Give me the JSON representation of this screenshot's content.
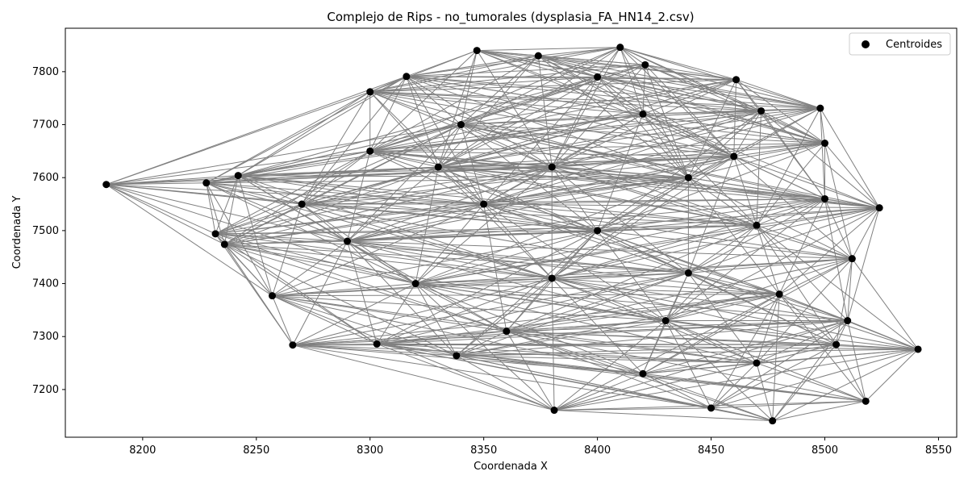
{
  "chart_data": {
    "type": "scatter",
    "title": "Complejo de Rips - no_tumorales (dysplasia_FA_HN14_2.csv)",
    "xlabel": "Coordenada X",
    "ylabel": "Coordenada Y",
    "xlim": [
      8166,
      8558
    ],
    "ylim": [
      7110,
      7882
    ],
    "xticks": [
      8200,
      8250,
      8300,
      8350,
      8400,
      8450,
      8500,
      8550
    ],
    "yticks": [
      7200,
      7300,
      7400,
      7500,
      7600,
      7700,
      7800
    ],
    "grid": false,
    "legend": {
      "location": "top-right",
      "entries": [
        "Centroides"
      ]
    },
    "colors": {
      "points": "#000000",
      "edges": "#808080",
      "axes": "#000000",
      "legend_border": "#cccccc"
    },
    "series": [
      {
        "name": "Centroides",
        "points": [
          [
            8184,
            7587
          ],
          [
            8266,
            7284
          ],
          [
            8257,
            7377
          ],
          [
            8347,
            7840
          ],
          [
            8374,
            7830
          ],
          [
            8410,
            7846
          ],
          [
            8421,
            7813
          ],
          [
            8461,
            7785
          ],
          [
            8498,
            7731
          ],
          [
            8300,
            7762
          ],
          [
            8316,
            7791
          ],
          [
            8472,
            7726
          ],
          [
            8500,
            7665
          ],
          [
            8524,
            7543
          ],
          [
            8541,
            7276
          ],
          [
            8518,
            7178
          ],
          [
            8477,
            7141
          ],
          [
            8450,
            7165
          ],
          [
            8381,
            7161
          ],
          [
            8228,
            7590
          ],
          [
            8242,
            7604
          ],
          [
            8232,
            7494
          ],
          [
            8236,
            7474
          ],
          [
            8303,
            7286
          ],
          [
            8338,
            7264
          ],
          [
            8300,
            7650
          ],
          [
            8340,
            7700
          ],
          [
            8380,
            7620
          ],
          [
            8420,
            7720
          ],
          [
            8460,
            7640
          ],
          [
            8500,
            7560
          ],
          [
            8512,
            7447
          ],
          [
            8510,
            7330
          ],
          [
            8505,
            7285
          ],
          [
            8470,
            7250
          ],
          [
            8420,
            7230
          ],
          [
            8360,
            7310
          ],
          [
            8320,
            7400
          ],
          [
            8290,
            7480
          ],
          [
            8350,
            7550
          ],
          [
            8400,
            7500
          ],
          [
            8440,
            7420
          ],
          [
            8480,
            7380
          ],
          [
            8430,
            7330
          ],
          [
            8380,
            7410
          ],
          [
            8330,
            7620
          ],
          [
            8270,
            7550
          ],
          [
            8400,
            7790
          ],
          [
            8440,
            7600
          ],
          [
            8470,
            7510
          ]
        ]
      }
    ],
    "edge_threshold": 250
  }
}
